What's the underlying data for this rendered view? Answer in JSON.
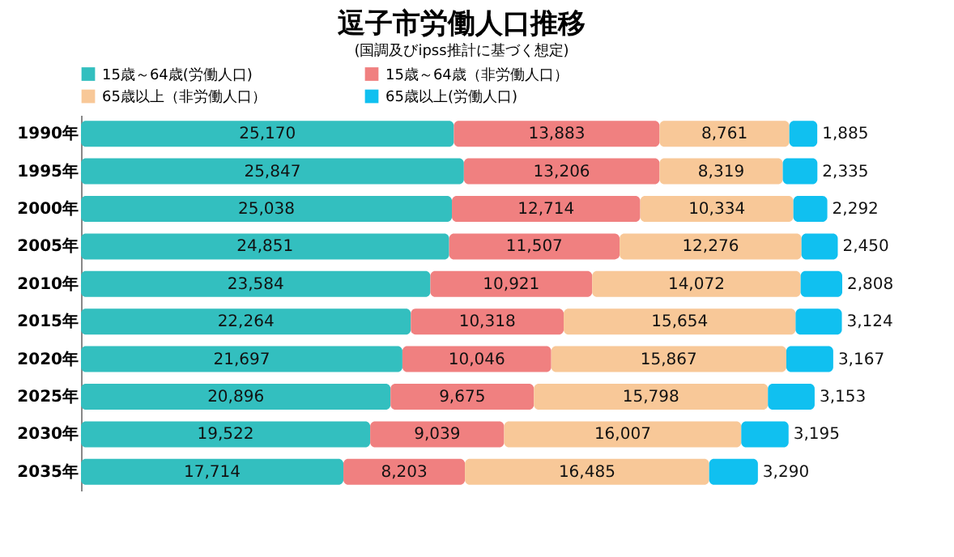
{
  "chart_data": {
    "type": "bar",
    "orientation": "horizontal",
    "stacked": true,
    "title": "逗子市労働人口推移",
    "subtitle": "(国調及びipss推計に基づく想定)",
    "categories": [
      "1990年",
      "1995年",
      "2000年",
      "2005年",
      "2010年",
      "2015年",
      "2020年",
      "2025年",
      "2030年",
      "2035年"
    ],
    "series": [
      {
        "name": "15歳～64歳(労働人口)",
        "color": "#33bfbf",
        "values": [
          25170,
          25847,
          25038,
          24851,
          23584,
          22264,
          21697,
          20896,
          19522,
          17714
        ],
        "value_labels": [
          "25,170",
          "25,847",
          "25,038",
          "24,851",
          "23,584",
          "22,264",
          "21,697",
          "20,896",
          "19,522",
          "17,714"
        ]
      },
      {
        "name": "15歳～64歳（非労働人口）",
        "color": "#f08080",
        "values": [
          13883,
          13206,
          12714,
          11507,
          10921,
          10318,
          10046,
          9675,
          9039,
          8203
        ],
        "value_labels": [
          "13,883",
          "13,206",
          "12,714",
          "11,507",
          "10,921",
          "10,318",
          "10,046",
          "9,675",
          "9,039",
          "8,203"
        ]
      },
      {
        "name": "65歳以上（非労働人口）",
        "color": "#f8c898",
        "values": [
          8761,
          8319,
          10334,
          12276,
          14072,
          15654,
          15867,
          15798,
          16007,
          16485
        ],
        "value_labels": [
          "8,761",
          "8,319",
          "10,334",
          "12,276",
          "14,072",
          "15,654",
          "15,867",
          "15,798",
          "16,007",
          "16,485"
        ]
      },
      {
        "name": "65歳以上(労働人口)",
        "color": "#10c0f0",
        "values": [
          1885,
          2335,
          2292,
          2450,
          2808,
          3124,
          3167,
          3153,
          3195,
          3290
        ],
        "value_labels": [
          "1,885",
          "2,335",
          "2,292",
          "2,450",
          "2,808",
          "3,124",
          "3,167",
          "3,153",
          "3,195",
          "3,290"
        ]
      }
    ],
    "legend": "top"
  }
}
